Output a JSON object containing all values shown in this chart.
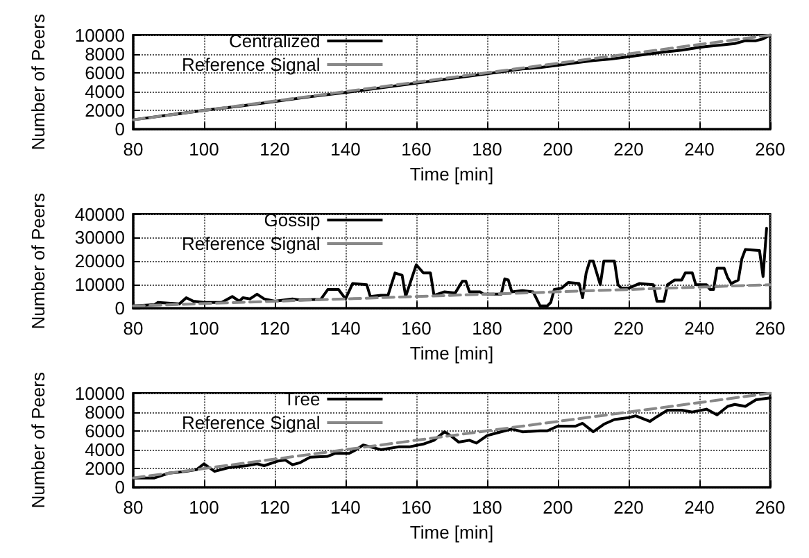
{
  "chart_data": [
    {
      "type": "line",
      "xlabel": "Time [min]",
      "ylabel": "Number of Peers",
      "xlim": [
        80,
        260
      ],
      "xticks": [
        80,
        100,
        120,
        140,
        160,
        180,
        200,
        220,
        240,
        260
      ],
      "ylim": [
        0,
        10000
      ],
      "yticks": [
        0,
        2000,
        4000,
        6000,
        8000,
        10000
      ],
      "grid": true,
      "legend": "top left",
      "series": [
        {
          "name": "Centralized",
          "color": "#000000",
          "line_style": "solid",
          "x": [
            80,
            90,
            100,
            110,
            120,
            130,
            140,
            150,
            160,
            170,
            180,
            190,
            195,
            200,
            205,
            210,
            215,
            220,
            225,
            230,
            235,
            240,
            245,
            250,
            253,
            256,
            258,
            260
          ],
          "values": [
            1000,
            1500,
            2000,
            2450,
            2950,
            3450,
            3900,
            4400,
            4900,
            5400,
            5900,
            6400,
            6550,
            6800,
            7050,
            7300,
            7450,
            7700,
            7950,
            8200,
            8400,
            8700,
            8900,
            9100,
            9400,
            9400,
            9600,
            10000
          ]
        },
        {
          "name": "Reference Signal",
          "color": "#888888",
          "line_style": "dashed",
          "x": [
            80,
            260
          ],
          "values": [
            1000,
            10000
          ]
        }
      ]
    },
    {
      "type": "line",
      "xlabel": "Time [min]",
      "ylabel": "Number of Peers",
      "xlim": [
        80,
        260
      ],
      "xticks": [
        80,
        100,
        120,
        140,
        160,
        180,
        200,
        220,
        240,
        260
      ],
      "ylim": [
        0,
        40000
      ],
      "yticks": [
        0,
        10000,
        20000,
        30000,
        40000
      ],
      "grid": true,
      "legend": "top left",
      "series": [
        {
          "name": "Gossip",
          "color": "#000000",
          "line_style": "solid",
          "x": [
            80,
            86,
            87,
            92,
            93,
            95,
            97,
            100,
            105,
            108,
            110,
            111,
            113,
            115,
            117,
            120,
            125,
            127,
            133,
            135,
            138,
            140,
            142,
            146,
            147,
            150,
            152,
            154,
            156,
            157,
            160,
            162,
            164,
            165,
            168,
            171,
            173,
            174,
            175,
            178,
            179,
            184,
            185,
            186,
            187,
            190,
            193,
            195,
            197,
            198,
            199,
            201,
            203,
            206,
            207,
            208,
            209,
            210,
            212,
            213,
            216,
            217,
            218,
            220,
            223,
            227,
            228,
            230,
            231,
            233,
            235,
            236,
            238,
            239,
            242,
            243,
            244,
            245,
            247,
            248,
            249,
            251,
            252,
            253,
            257,
            258,
            259
          ],
          "values": [
            1000,
            1500,
            2500,
            2000,
            1800,
            4500,
            3000,
            2500,
            2500,
            5000,
            3000,
            4500,
            4000,
            6000,
            4000,
            3000,
            4000,
            3500,
            3800,
            8000,
            8000,
            4000,
            10500,
            10000,
            5000,
            5500,
            5500,
            15000,
            14000,
            5000,
            18500,
            15000,
            15000,
            5500,
            7000,
            6500,
            11500,
            11500,
            7000,
            7000,
            6000,
            6000,
            12500,
            12000,
            7000,
            7500,
            7000,
            1000,
            1000,
            2500,
            8000,
            8500,
            11000,
            10500,
            4500,
            15000,
            20000,
            20000,
            10000,
            20000,
            20000,
            10000,
            8500,
            8500,
            10500,
            10000,
            3000,
            3000,
            10000,
            12000,
            12000,
            15000,
            15000,
            10000,
            10000,
            8000,
            8000,
            17000,
            17000,
            13000,
            10500,
            12000,
            21000,
            25000,
            24500,
            13500,
            34000
          ]
        },
        {
          "name": "Reference Signal",
          "color": "#888888",
          "line_style": "dashed",
          "x": [
            80,
            260
          ],
          "values": [
            1000,
            10000
          ]
        }
      ]
    },
    {
      "type": "line",
      "xlabel": "Time [min]",
      "ylabel": "Number of Peers",
      "xlim": [
        80,
        260
      ],
      "xticks": [
        80,
        100,
        120,
        140,
        160,
        180,
        200,
        220,
        240,
        260
      ],
      "ylim": [
        0,
        10000
      ],
      "yticks": [
        0,
        2000,
        4000,
        6000,
        8000,
        10000
      ],
      "grid": true,
      "legend": "top left",
      "series": [
        {
          "name": "Tree",
          "color": "#000000",
          "line_style": "solid",
          "x": [
            80,
            86,
            90,
            95,
            98,
            100,
            103,
            107,
            112,
            115,
            117,
            121,
            123,
            125,
            127,
            130,
            135,
            137,
            141,
            143,
            145,
            150,
            155,
            158,
            162,
            165,
            168,
            170,
            172,
            175,
            177,
            180,
            185,
            187,
            190,
            195,
            197,
            200,
            205,
            207,
            210,
            213,
            216,
            220,
            222,
            226,
            228,
            231,
            235,
            238,
            242,
            245,
            248,
            250,
            253,
            256,
            260
          ],
          "values": [
            1000,
            1000,
            1500,
            1700,
            1900,
            2500,
            1700,
            2100,
            2300,
            2500,
            2300,
            2800,
            2900,
            2400,
            2600,
            3200,
            3300,
            3600,
            3600,
            4000,
            4500,
            4000,
            4300,
            4300,
            4600,
            5000,
            5900,
            5400,
            4800,
            5000,
            4700,
            5500,
            6000,
            6200,
            5900,
            6000,
            6000,
            6500,
            6500,
            6800,
            5900,
            6700,
            7200,
            7400,
            7600,
            7000,
            7500,
            8200,
            8200,
            8000,
            8300,
            7700,
            8600,
            8800,
            8600,
            9300,
            9500
          ]
        },
        {
          "name": "Reference Signal",
          "color": "#888888",
          "line_style": "dashed",
          "x": [
            80,
            260
          ],
          "values": [
            1000,
            10000
          ]
        }
      ]
    }
  ]
}
